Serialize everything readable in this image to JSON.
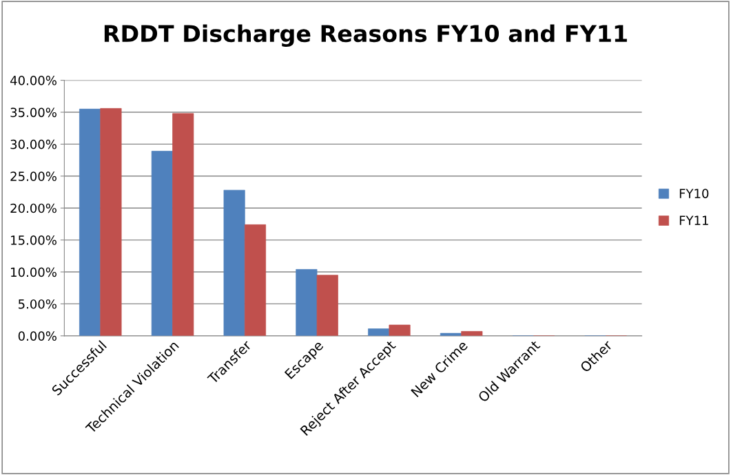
{
  "chart_data": {
    "type": "bar",
    "title": "RDDT Discharge Reasons FY10 and FY11",
    "categories": [
      "Successful",
      "Technical Violation",
      "Transfer",
      "Escape",
      "Reject After Accept",
      "New Crime",
      "Old Warrant",
      "Other"
    ],
    "series": [
      {
        "name": "FY10",
        "color": "#4f81bd",
        "values": [
          35.5,
          28.9,
          22.8,
          10.4,
          1.1,
          0.4,
          0,
          0
        ]
      },
      {
        "name": "FY11",
        "color": "#c0504d",
        "values": [
          35.6,
          34.8,
          17.4,
          9.5,
          1.7,
          0.7,
          0,
          0
        ]
      }
    ],
    "ylim": [
      0,
      40
    ],
    "yticks": [
      {
        "value": 0,
        "label": "0.00%"
      },
      {
        "value": 5,
        "label": "5.00%"
      },
      {
        "value": 10,
        "label": "10.00%"
      },
      {
        "value": 15,
        "label": "15.00%"
      },
      {
        "value": 20,
        "label": "20.00%"
      },
      {
        "value": 25,
        "label": "25.00%"
      },
      {
        "value": 30,
        "label": "30.00%"
      },
      {
        "value": 35,
        "label": "35.00%"
      },
      {
        "value": 40,
        "label": "40.00%"
      }
    ],
    "grid": "y",
    "legend": "right"
  }
}
